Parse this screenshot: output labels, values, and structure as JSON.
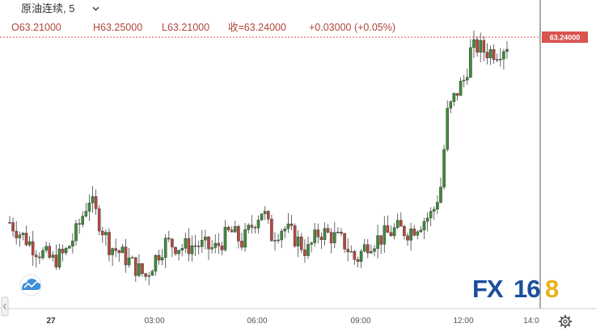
{
  "header": {
    "symbol_title": "原油连续, 5",
    "chevron": "chevron-down-icon",
    "open": "O63.21000",
    "high": "H63.25000",
    "low": "L63.21000",
    "close": "收=63.24000",
    "change": "+0.03000 (+0.05%)"
  },
  "price_badge": "63.24000",
  "watermark": {
    "part1": "FX",
    "part2": "16",
    "part3": "8",
    "color_dark": "#1a4f9c",
    "color_accent": "#e7b21a"
  },
  "icons": {
    "logo": "cloud-logo-icon",
    "settings": "gear-icon",
    "scroll": "scroll-left-icon"
  },
  "colors": {
    "up": "#3e8a3a",
    "down": "#b5483f",
    "badge": "#d9534f",
    "price_line": "#d9534f"
  },
  "chart_data": {
    "type": "candlestick",
    "interval": "5",
    "x_tick_labels": [
      "27",
      "03:00",
      "06:00",
      "09:00",
      "12:00",
      "14:0"
    ],
    "last_price": 63.24,
    "ylim": [
      62.1,
      63.32
    ],
    "anchor_closes": [
      {
        "label": "27",
        "close": 62.42
      },
      {
        "label": "03:00",
        "close": 62.42
      },
      {
        "label": "06:00",
        "close": 62.55
      },
      {
        "label": "09:00",
        "close": 62.42
      },
      {
        "label": "12:00",
        "close": 63.18
      },
      {
        "label": "14:0",
        "close": 63.24
      }
    ]
  }
}
